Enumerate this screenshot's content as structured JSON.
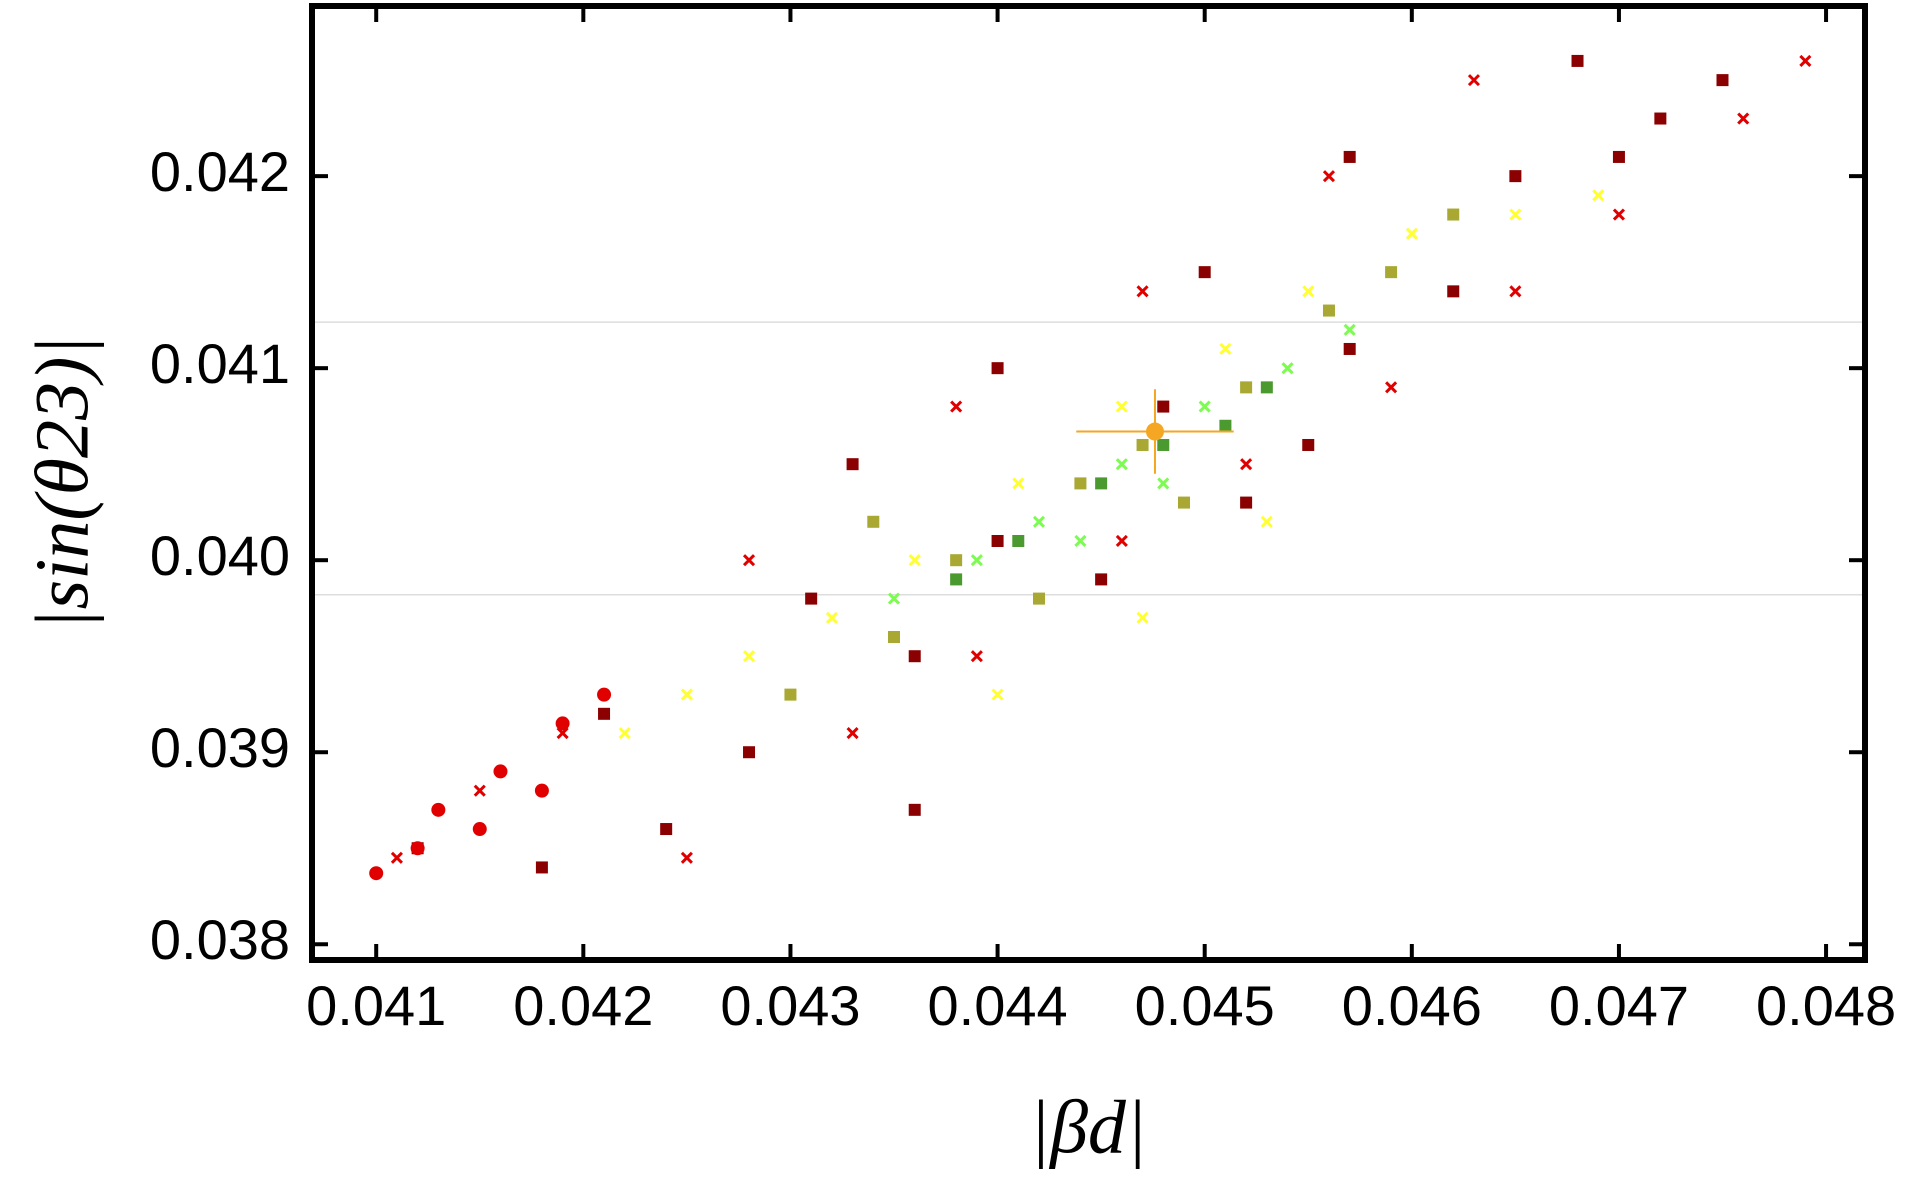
{
  "chart_data": {
    "type": "scatter",
    "xlabel": "|βd|",
    "ylabel": "|sin(θ23)|",
    "xlim": [
      0.04069,
      0.048188
    ],
    "ylim": [
      0.037918,
      0.042886
    ],
    "xticks": [
      0.041,
      0.042,
      0.043,
      0.044,
      0.045,
      0.046,
      0.047,
      0.048
    ],
    "yticks": [
      0.038,
      0.039,
      {
        "value": 0.04,
        "label": "0.040"
      },
      0.041,
      0.042
    ],
    "hlines": [
      0.04124,
      0.03982
    ],
    "hline_color": "#dddddd",
    "series": [
      {
        "color": "#8b0000",
        "marker": "square",
        "x": [
          0.0412,
          0.0418,
          0.0424,
          0.0421,
          0.0428,
          0.0431,
          0.0436,
          0.0433,
          0.044,
          0.0445,
          0.044,
          0.0448,
          0.0452,
          0.045,
          0.0457,
          0.0462,
          0.0457,
          0.0465,
          0.047,
          0.0468,
          0.0475,
          0.0472,
          0.0436,
          0.0455
        ],
        "y": [
          0.0385,
          0.0384,
          0.0386,
          0.0392,
          0.039,
          0.0398,
          0.0395,
          0.0405,
          0.0401,
          0.0399,
          0.041,
          0.0408,
          0.0403,
          0.0415,
          0.0411,
          0.0414,
          0.0421,
          0.042,
          0.0421,
          0.0426,
          0.0425,
          0.0423,
          0.0387,
          0.0406
        ]
      },
      {
        "color": "#e00000",
        "marker": "cross",
        "x": [
          0.0411,
          0.0415,
          0.0419,
          0.0425,
          0.0433,
          0.0439,
          0.0446,
          0.0452,
          0.0459,
          0.0465,
          0.047,
          0.0476,
          0.0479,
          0.0447,
          0.0456,
          0.0463,
          0.0438,
          0.0428
        ],
        "y": [
          0.03845,
          0.0388,
          0.0391,
          0.03845,
          0.0391,
          0.0395,
          0.0401,
          0.0405,
          0.0409,
          0.0414,
          0.0418,
          0.0423,
          0.0426,
          0.0414,
          0.042,
          0.0425,
          0.0408,
          0.04
        ]
      },
      {
        "color": "#e00000",
        "marker": "circle",
        "x": [
          0.041,
          0.0413,
          0.0416,
          0.0419,
          0.0421,
          0.0412,
          0.0415,
          0.0418
        ],
        "y": [
          0.03837,
          0.0387,
          0.0389,
          0.03915,
          0.0393,
          0.0385,
          0.0386,
          0.0388
        ]
      },
      {
        "color": "#ffff33",
        "marker": "cross",
        "x": [
          0.0422,
          0.0425,
          0.0428,
          0.0432,
          0.0436,
          0.0441,
          0.0446,
          0.0451,
          0.0455,
          0.046,
          0.0465,
          0.0469,
          0.0453,
          0.0447,
          0.044
        ],
        "y": [
          0.0391,
          0.0393,
          0.0395,
          0.0397,
          0.04,
          0.0404,
          0.0408,
          0.0411,
          0.0414,
          0.0417,
          0.0418,
          0.0419,
          0.0402,
          0.0397,
          0.0393
        ]
      },
      {
        "color": "#a8a832",
        "marker": "square",
        "x": [
          0.043,
          0.0435,
          0.0438,
          0.0442,
          0.0444,
          0.0449,
          0.0452,
          0.0456,
          0.0459,
          0.0462,
          0.0434,
          0.0447
        ],
        "y": [
          0.0393,
          0.0396,
          0.04,
          0.0398,
          0.0404,
          0.0403,
          0.0409,
          0.0413,
          0.0415,
          0.0418,
          0.0402,
          0.0406
        ]
      },
      {
        "color": "#7cfc50",
        "marker": "cross",
        "x": [
          0.0435,
          0.0439,
          0.0442,
          0.0446,
          0.045,
          0.0454,
          0.0457,
          0.0444,
          0.0448
        ],
        "y": [
          0.0398,
          0.04,
          0.0402,
          0.0405,
          0.0408,
          0.041,
          0.0412,
          0.0401,
          0.0404
        ]
      },
      {
        "color": "#4a9a30",
        "marker": "square",
        "x": [
          0.0441,
          0.0445,
          0.0448,
          0.0451,
          0.0438,
          0.0453
        ],
        "y": [
          0.0401,
          0.0404,
          0.0406,
          0.0407,
          0.0399,
          0.0409
        ]
      }
    ],
    "reference": {
      "x": 0.04476,
      "y": 0.04067,
      "xerr": 0.00038,
      "yerr": 0.00022,
      "color": "#f5a623"
    }
  }
}
